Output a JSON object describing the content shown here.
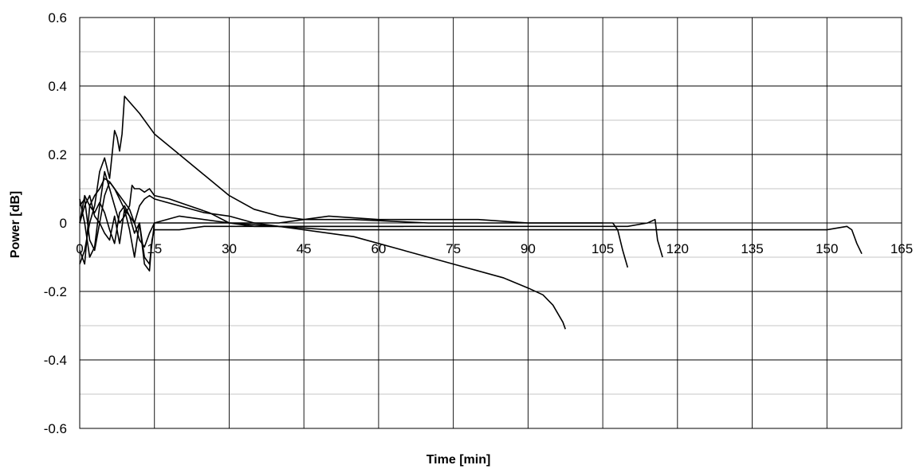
{
  "chart_data": {
    "type": "line",
    "title": "",
    "xlabel": "Time [min]",
    "ylabel": "Power [dB]",
    "xlim": [
      0,
      165
    ],
    "ylim": [
      -0.6,
      0.6
    ],
    "x_ticks": [
      0,
      15,
      30,
      45,
      60,
      75,
      90,
      105,
      120,
      135,
      150,
      165
    ],
    "x_tick_labels": [
      "0",
      "15",
      "30",
      "45",
      "60",
      "75",
      "90",
      "105",
      "120",
      "135",
      "150",
      "165"
    ],
    "y_ticks": [
      -0.6,
      -0.4,
      -0.2,
      0,
      0.2,
      0.4,
      0.6
    ],
    "y_tick_labels": [
      "-0.6",
      "-0.4",
      "-0.2",
      "0",
      "0.2",
      "0.4",
      "0.6"
    ],
    "y_minor_ticks": [
      -0.5,
      -0.3,
      -0.1,
      0.1,
      0.3,
      0.5
    ],
    "grid": true,
    "legend": "none",
    "colors": {
      "line": "#000000",
      "grid_major": "#000000",
      "grid_minor": "#b0b0b0"
    },
    "series": [
      {
        "x": [
          0,
          1,
          2,
          3,
          4,
          5,
          6,
          7,
          8,
          9,
          10,
          11,
          12,
          13,
          14,
          14.5,
          15,
          20,
          25,
          30,
          40,
          55,
          65,
          75,
          85,
          90,
          93,
          95,
          97,
          97.5
        ],
        "y": [
          0.0,
          0.05,
          0.08,
          0.02,
          0.0,
          -0.03,
          -0.05,
          0.02,
          -0.06,
          0.04,
          -0.02,
          -0.1,
          0.0,
          -0.12,
          -0.14,
          -0.05,
          -0.02,
          -0.02,
          -0.01,
          -0.01,
          -0.01,
          -0.04,
          -0.08,
          -0.12,
          -0.16,
          -0.19,
          -0.21,
          -0.24,
          -0.29,
          -0.31
        ]
      },
      {
        "x": [
          0,
          1,
          2,
          3,
          4,
          5,
          6,
          6.5,
          7,
          7.5,
          8,
          8.5,
          9,
          12,
          15,
          20,
          25,
          30,
          35,
          40,
          45,
          55,
          70,
          90,
          100,
          105,
          107,
          108,
          109,
          110
        ],
        "y": [
          -0.12,
          -0.08,
          0.0,
          0.05,
          0.15,
          0.19,
          0.13,
          0.2,
          0.27,
          0.25,
          0.21,
          0.26,
          0.37,
          0.32,
          0.26,
          0.2,
          0.14,
          0.08,
          0.04,
          0.02,
          0.01,
          0.01,
          0.0,
          0.0,
          0.0,
          0.0,
          0.0,
          -0.02,
          -0.08,
          -0.13
        ]
      },
      {
        "x": [
          0,
          1,
          2,
          3,
          4,
          5,
          6,
          7,
          8,
          9,
          10,
          10.5,
          11,
          12,
          13,
          14,
          15,
          18,
          22,
          26,
          30,
          35,
          40,
          50,
          60,
          80,
          100,
          110,
          114,
          115.5,
          116,
          117
        ],
        "y": [
          0.07,
          0.0,
          -0.1,
          -0.07,
          0.05,
          0.15,
          0.1,
          0.05,
          0.0,
          0.02,
          0.05,
          0.11,
          0.1,
          0.1,
          0.09,
          0.1,
          0.08,
          0.07,
          0.05,
          0.03,
          0.0,
          -0.01,
          -0.01,
          -0.01,
          -0.01,
          -0.01,
          -0.01,
          -0.01,
          0.0,
          0.01,
          -0.05,
          -0.1
        ]
      },
      {
        "x": [
          0,
          1,
          2,
          3,
          4,
          5,
          6,
          7,
          8,
          9,
          10,
          11,
          12,
          13,
          14,
          15,
          20,
          25,
          30,
          35,
          40,
          50,
          60,
          80,
          100,
          120,
          140,
          150,
          154,
          155,
          156,
          157
        ],
        "y": [
          -0.08,
          -0.12,
          0.05,
          0.08,
          0.1,
          0.13,
          0.12,
          0.1,
          0.08,
          0.06,
          0.04,
          0.0,
          0.05,
          0.07,
          0.08,
          0.07,
          0.05,
          0.03,
          0.02,
          0.0,
          -0.01,
          -0.02,
          -0.02,
          -0.02,
          -0.02,
          -0.02,
          -0.02,
          -0.02,
          -0.01,
          -0.02,
          -0.06,
          -0.09
        ]
      },
      {
        "x": [
          0,
          1,
          2,
          3,
          4,
          5,
          6,
          7,
          8,
          9,
          10,
          11,
          12,
          13,
          14,
          15,
          20,
          25,
          30,
          40,
          45,
          50,
          60,
          70,
          80,
          90,
          100,
          105
        ],
        "y": [
          0.0,
          0.08,
          0.05,
          0.03,
          0.06,
          0.03,
          -0.02,
          -0.06,
          0.03,
          0.05,
          0.02,
          -0.03,
          0.0,
          -0.1,
          -0.12,
          0.0,
          0.0,
          0.0,
          0.0,
          0.0,
          0.01,
          0.02,
          0.01,
          0.01,
          0.01,
          0.0,
          0.0,
          0.0
        ]
      },
      {
        "x": [
          0,
          1,
          2,
          3,
          4,
          5,
          6,
          7,
          8,
          9,
          10,
          11,
          12,
          13,
          14,
          15,
          20,
          30,
          40,
          45,
          55,
          60,
          65
        ],
        "y": [
          0.05,
          0.07,
          -0.05,
          -0.08,
          0.0,
          0.08,
          0.12,
          0.1,
          0.07,
          0.04,
          0.02,
          0.0,
          -0.05,
          -0.07,
          -0.03,
          0.0,
          0.02,
          0.0,
          -0.01,
          -0.01,
          -0.01,
          -0.01,
          -0.01
        ]
      }
    ]
  }
}
